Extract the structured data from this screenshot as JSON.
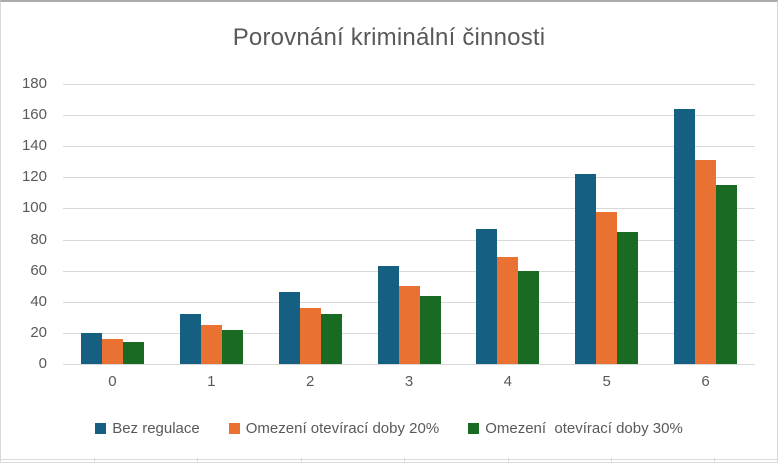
{
  "title": "Porovnání kriminální činnosti",
  "colors": {
    "series_blue": "#156082",
    "series_orange": "#E97132",
    "series_green": "#196B24",
    "gridline": "#D9D9D9",
    "text": "#595959",
    "chart_border": "#D9D9D9"
  },
  "chart_data": {
    "type": "bar",
    "title": "Porovnání kriminální činnosti",
    "categories": [
      "0",
      "1",
      "2",
      "3",
      "4",
      "5",
      "6"
    ],
    "series": [
      {
        "name": "Bez regulace",
        "color": "#156082",
        "values": [
          20,
          32,
          46,
          63,
          87,
          122,
          164
        ]
      },
      {
        "name": "Omezení otevírací doby 20%",
        "color": "#E97132",
        "values": [
          16,
          25,
          36,
          50,
          69,
          98,
          131
        ]
      },
      {
        "name": "Omezení  otevírací doby 30%",
        "color": "#196B24",
        "values": [
          14,
          22,
          32,
          44,
          60,
          85,
          115
        ]
      }
    ],
    "xlabel": "",
    "ylabel": "",
    "ylim": [
      0,
      180
    ],
    "ytick_step": 20,
    "grid": true,
    "legend_position": "bottom"
  }
}
